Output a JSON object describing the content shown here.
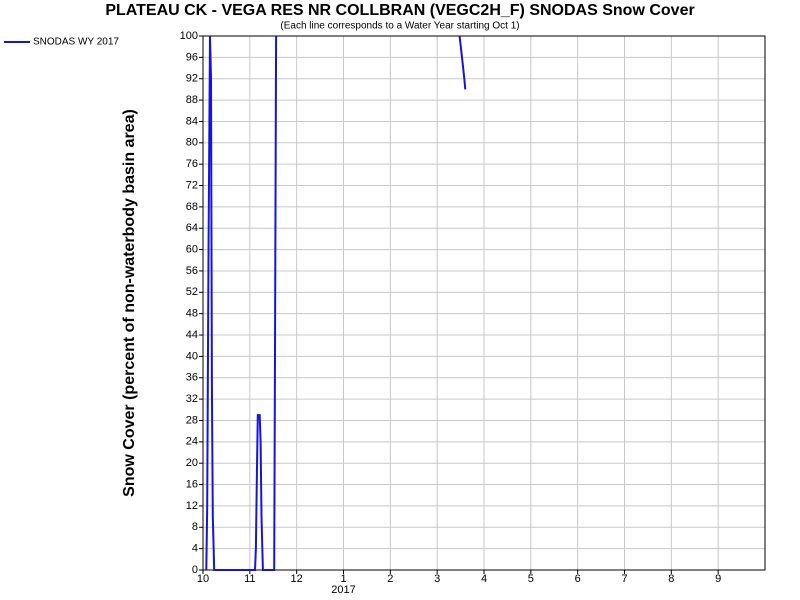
{
  "chart_data": {
    "type": "line",
    "title": "PLATEAU CK - VEGA RES NR COLLBRAN (VEGC2H_F) SNODAS Snow Cover",
    "subtitle": "(Each line corresponds to a Water Year starting Oct 1)",
    "y_label": "Snow Cover (percent of non-waterbody basin area)",
    "x_year_label": "2017",
    "x": [
      0.07,
      0.09,
      0.12,
      0.15,
      0.17,
      0.19,
      0.21,
      0.24,
      1.11,
      1.13,
      1.15,
      1.17,
      1.21,
      1.23,
      1.25,
      1.28,
      1.52,
      1.53,
      1.56,
      null,
      5.48,
      5.53,
      5.58,
      5.6
    ],
    "series": [
      {
        "name": "SNODAS WY 2017",
        "color": "#1414dc",
        "values": [
          0,
          12,
          62,
          100,
          92,
          35,
          10,
          0,
          0,
          4,
          18,
          29,
          29,
          24,
          10,
          0,
          0,
          25,
          100,
          null,
          100,
          96,
          92,
          90
        ]
      }
    ],
    "xlim": [
      0,
      12
    ],
    "xticks": [
      {
        "value": 0,
        "label": "10"
      },
      {
        "value": 1,
        "label": "11"
      },
      {
        "value": 2,
        "label": "12"
      },
      {
        "value": 3,
        "label": "1"
      },
      {
        "value": 4,
        "label": "2"
      },
      {
        "value": 5,
        "label": "3"
      },
      {
        "value": 6,
        "label": "4"
      },
      {
        "value": 7,
        "label": "5"
      },
      {
        "value": 8,
        "label": "6"
      },
      {
        "value": 9,
        "label": "7"
      },
      {
        "value": 10,
        "label": "8"
      },
      {
        "value": 11,
        "label": "9"
      }
    ],
    "ylim": [
      0,
      100
    ],
    "yticks": [
      0,
      4,
      8,
      12,
      16,
      20,
      24,
      28,
      32,
      36,
      40,
      44,
      48,
      52,
      56,
      60,
      64,
      68,
      72,
      76,
      80,
      84,
      88,
      92,
      96,
      100
    ],
    "grid": true,
    "legend": "top-left"
  }
}
